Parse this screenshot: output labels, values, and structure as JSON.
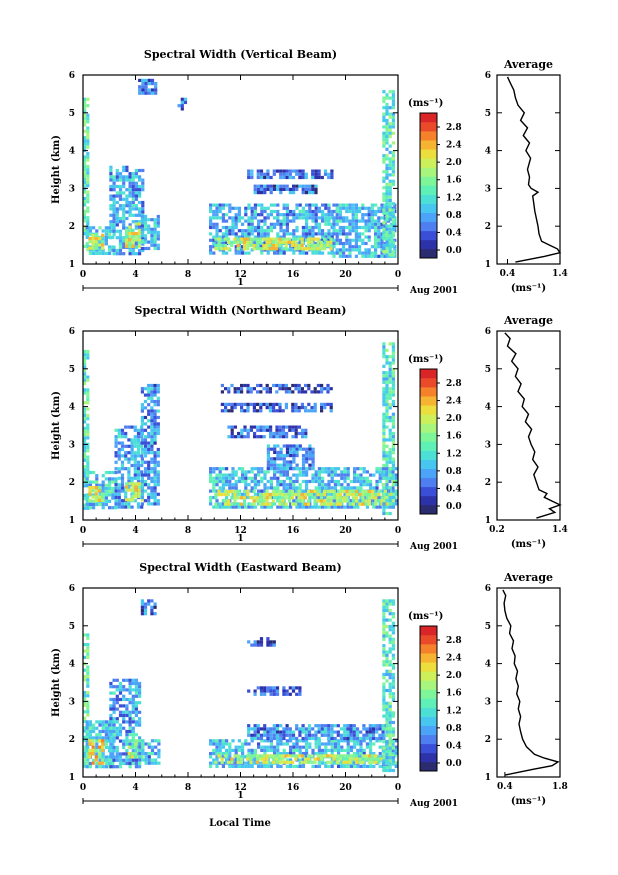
{
  "figure": {
    "xlabel": "Local Time",
    "date_label": "Aug 2001",
    "day_label": "1"
  },
  "colorbar": {
    "unit_label": "(ms⁻¹)",
    "colors": [
      "#2b2b70",
      "#2e32a8",
      "#3a4fd6",
      "#4f7ef0",
      "#4ba4f7",
      "#47c6f0",
      "#4cdfd6",
      "#5ff0b8",
      "#7ff59a",
      "#a7f57c",
      "#cdf05a",
      "#ecde3c",
      "#f7b432",
      "#f5822b",
      "#ea4a2a",
      "#d92527"
    ]
  },
  "chart_data": [
    {
      "type": "heatmap",
      "title": "Spectral Width (Vertical Beam)",
      "xlabel": "Local Time",
      "ylabel": "Height (km)",
      "xlim": [
        0,
        24
      ],
      "ylim": [
        1,
        6
      ],
      "xticks": [
        "0",
        "4",
        "8",
        "12",
        "16",
        "20",
        "0"
      ],
      "yticks": [
        "1",
        "2",
        "3",
        "4",
        "5",
        "6"
      ],
      "colorbar_ticks": [
        "0.0",
        "0.4",
        "0.8",
        "1.2",
        "1.6",
        "2.0",
        "2.4",
        "2.8"
      ],
      "colorbar_range": [
        0,
        3.0
      ],
      "echo_regions": [
        {
          "x": [
            0,
            0.4
          ],
          "y": [
            1.4,
            5.4
          ],
          "v": 1.4
        },
        {
          "x": [
            0.2,
            2.2
          ],
          "y": [
            1.3,
            2.0
          ],
          "v": 1.1
        },
        {
          "x": [
            0.4,
            1.6
          ],
          "y": [
            1.4,
            1.8
          ],
          "v": 2.0
        },
        {
          "x": [
            2.0,
            4.6
          ],
          "y": [
            1.3,
            3.6
          ],
          "v": 0.9
        },
        {
          "x": [
            3.2,
            4.4
          ],
          "y": [
            1.5,
            2.1
          ],
          "v": 1.9
        },
        {
          "x": [
            4.4,
            5.8
          ],
          "y": [
            1.4,
            2.3
          ],
          "v": 1.0
        },
        {
          "x": [
            4.2,
            5.6
          ],
          "y": [
            5.5,
            5.9
          ],
          "v": 0.7
        },
        {
          "x": [
            7.2,
            7.8
          ],
          "y": [
            5.1,
            5.4
          ],
          "v": 0.6
        },
        {
          "x": [
            9.6,
            19.0
          ],
          "y": [
            1.3,
            2.6
          ],
          "v": 0.9
        },
        {
          "x": [
            10.0,
            19.0
          ],
          "y": [
            1.4,
            1.7
          ],
          "v": 1.9
        },
        {
          "x": [
            12.5,
            19.0
          ],
          "y": [
            3.3,
            3.5
          ],
          "v": 0.6
        },
        {
          "x": [
            13.0,
            18.0
          ],
          "y": [
            2.9,
            3.1
          ],
          "v": 0.6
        },
        {
          "x": [
            19.0,
            23.8
          ],
          "y": [
            1.2,
            2.6
          ],
          "v": 1.0
        },
        {
          "x": [
            22.8,
            23.6
          ],
          "y": [
            1.2,
            5.6
          ],
          "v": 1.3
        }
      ],
      "average_profile": {
        "title": "Average",
        "xlabel": "(ms⁻¹)",
        "xlim": [
          0.2,
          1.4
        ],
        "xticks": [
          "0.4",
          "1.4"
        ],
        "yticks": [
          "1",
          "2",
          "3",
          "4",
          "5",
          "6"
        ],
        "height": [
          1.05,
          1.2,
          1.3,
          1.4,
          1.5,
          1.6,
          1.8,
          2.0,
          2.2,
          2.4,
          2.6,
          2.8,
          2.9,
          3.0,
          3.1,
          3.3,
          3.5,
          3.8,
          4.0,
          4.2,
          4.4,
          4.6,
          4.8,
          5.0,
          5.2,
          5.4,
          5.6,
          5.8,
          5.95
        ],
        "width": [
          0.55,
          1.1,
          1.4,
          1.35,
          1.2,
          1.05,
          1.0,
          0.98,
          0.95,
          0.92,
          0.9,
          0.88,
          0.98,
          0.85,
          0.8,
          0.82,
          0.78,
          0.84,
          0.75,
          0.82,
          0.7,
          0.78,
          0.65,
          0.72,
          0.6,
          0.55,
          0.52,
          0.45,
          0.4
        ]
      }
    },
    {
      "type": "heatmap",
      "title": "Spectral Width (Northward Beam)",
      "xlabel": "Local Time",
      "ylabel": "Height (km)",
      "xlim": [
        0,
        24
      ],
      "ylim": [
        1,
        6
      ],
      "xticks": [
        "0",
        "4",
        "8",
        "12",
        "16",
        "20",
        "0"
      ],
      "yticks": [
        "1",
        "2",
        "3",
        "4",
        "5",
        "6"
      ],
      "colorbar_ticks": [
        "0.0",
        "0.4",
        "0.8",
        "1.2",
        "1.6",
        "2.0",
        "2.4",
        "2.8"
      ],
      "colorbar_range": [
        0,
        3.0
      ],
      "echo_regions": [
        {
          "x": [
            0,
            0.4
          ],
          "y": [
            1.3,
            5.5
          ],
          "v": 1.4
        },
        {
          "x": [
            0.2,
            2.4
          ],
          "y": [
            1.3,
            2.3
          ],
          "v": 1.1
        },
        {
          "x": [
            0.4,
            1.4
          ],
          "y": [
            1.5,
            1.9
          ],
          "v": 2.0
        },
        {
          "x": [
            2.4,
            4.4
          ],
          "y": [
            1.3,
            3.5
          ],
          "v": 0.9
        },
        {
          "x": [
            3.2,
            4.6
          ],
          "y": [
            1.5,
            2.0
          ],
          "v": 1.9
        },
        {
          "x": [
            4.4,
            5.8
          ],
          "y": [
            1.4,
            4.6
          ],
          "v": 0.8
        },
        {
          "x": [
            9.6,
            23.8
          ],
          "y": [
            1.3,
            2.4
          ],
          "v": 1.0
        },
        {
          "x": [
            10.0,
            23.8
          ],
          "y": [
            1.4,
            1.8
          ],
          "v": 1.9
        },
        {
          "x": [
            10.5,
            19.0
          ],
          "y": [
            4.4,
            4.6
          ],
          "v": 0.5
        },
        {
          "x": [
            10.5,
            19.0
          ],
          "y": [
            3.9,
            4.1
          ],
          "v": 0.5
        },
        {
          "x": [
            11.0,
            17.0
          ],
          "y": [
            3.2,
            3.5
          ],
          "v": 0.6
        },
        {
          "x": [
            14.0,
            17.5
          ],
          "y": [
            2.4,
            3.0
          ],
          "v": 0.7
        },
        {
          "x": [
            22.8,
            23.6
          ],
          "y": [
            1.2,
            5.7
          ],
          "v": 1.3
        }
      ],
      "average_profile": {
        "title": "Average",
        "xlabel": "(ms⁻¹)",
        "xlim": [
          0.2,
          1.4
        ],
        "xticks": [
          "0.2",
          "1.4"
        ],
        "yticks": [
          "1",
          "2",
          "3",
          "4",
          "5",
          "6"
        ],
        "height": [
          1.05,
          1.2,
          1.3,
          1.4,
          1.5,
          1.6,
          1.7,
          1.8,
          2.0,
          2.2,
          2.4,
          2.6,
          2.8,
          3.0,
          3.2,
          3.4,
          3.6,
          3.8,
          4.0,
          4.2,
          4.4,
          4.6,
          4.8,
          5.0,
          5.2,
          5.4,
          5.6,
          5.8,
          5.95
        ],
        "width": [
          0.95,
          1.3,
          1.2,
          1.4,
          1.25,
          1.1,
          1.15,
          1.0,
          0.95,
          0.9,
          0.98,
          0.88,
          0.92,
          0.85,
          0.8,
          0.86,
          0.74,
          0.8,
          0.68,
          0.72,
          0.6,
          0.66,
          0.55,
          0.6,
          0.48,
          0.56,
          0.4,
          0.45,
          0.35
        ]
      }
    },
    {
      "type": "heatmap",
      "title": "Spectral Width (Eastward Beam)",
      "xlabel": "Local Time",
      "ylabel": "Height (km)",
      "xlim": [
        0,
        24
      ],
      "ylim": [
        1,
        6
      ],
      "xticks": [
        "0",
        "4",
        "8",
        "12",
        "16",
        "20",
        "0"
      ],
      "yticks": [
        "1",
        "2",
        "3",
        "4",
        "5",
        "6"
      ],
      "colorbar_ticks": [
        "0.0",
        "0.4",
        "0.8",
        "1.2",
        "1.6",
        "2.0",
        "2.4",
        "2.8"
      ],
      "colorbar_range": [
        0,
        3.0
      ],
      "echo_regions": [
        {
          "x": [
            0,
            0.4
          ],
          "y": [
            1.3,
            4.8
          ],
          "v": 1.4
        },
        {
          "x": [
            0.2,
            2.2
          ],
          "y": [
            1.3,
            2.5
          ],
          "v": 1.1
        },
        {
          "x": [
            0.4,
            1.6
          ],
          "y": [
            1.4,
            2.0
          ],
          "v": 2.1
        },
        {
          "x": [
            2.0,
            4.4
          ],
          "y": [
            1.3,
            3.6
          ],
          "v": 0.9
        },
        {
          "x": [
            3.4,
            4.6
          ],
          "y": [
            1.5,
            2.0
          ],
          "v": 1.8
        },
        {
          "x": [
            4.2,
            5.8
          ],
          "y": [
            1.4,
            2.0
          ],
          "v": 1.0
        },
        {
          "x": [
            4.4,
            5.6
          ],
          "y": [
            5.3,
            5.7
          ],
          "v": 0.6
        },
        {
          "x": [
            9.6,
            23.8
          ],
          "y": [
            1.3,
            2.0
          ],
          "v": 1.0
        },
        {
          "x": [
            10.0,
            23.8
          ],
          "y": [
            1.4,
            1.6
          ],
          "v": 1.9
        },
        {
          "x": [
            12.5,
            23.0
          ],
          "y": [
            2.0,
            2.4
          ],
          "v": 0.8
        },
        {
          "x": [
            12.5,
            16.5
          ],
          "y": [
            3.2,
            3.4
          ],
          "v": 0.6
        },
        {
          "x": [
            12.5,
            14.5
          ],
          "y": [
            4.5,
            4.7
          ],
          "v": 0.5
        },
        {
          "x": [
            22.8,
            23.6
          ],
          "y": [
            1.2,
            5.7
          ],
          "v": 1.3
        }
      ],
      "average_profile": {
        "title": "Average",
        "xlabel": "(ms⁻¹)",
        "xlim": [
          0.2,
          1.8
        ],
        "xticks": [
          "0.4",
          "1.8"
        ],
        "yticks": [
          "1",
          "2",
          "3",
          "4",
          "5",
          "6"
        ],
        "height": [
          1.05,
          1.2,
          1.3,
          1.4,
          1.5,
          1.6,
          1.7,
          1.8,
          2.0,
          2.2,
          2.4,
          2.6,
          2.8,
          3.0,
          3.2,
          3.4,
          3.6,
          3.8,
          4.0,
          4.2,
          4.4,
          4.6,
          4.8,
          5.0,
          5.2,
          5.4,
          5.6,
          5.8,
          5.95
        ],
        "width": [
          0.4,
          1.1,
          1.6,
          1.75,
          1.4,
          1.15,
          1.05,
          0.95,
          0.85,
          0.8,
          0.76,
          0.8,
          0.74,
          0.78,
          0.7,
          0.74,
          0.68,
          0.72,
          0.64,
          0.66,
          0.58,
          0.62,
          0.52,
          0.55,
          0.45,
          0.4,
          0.38,
          0.42,
          0.35
        ]
      }
    }
  ]
}
